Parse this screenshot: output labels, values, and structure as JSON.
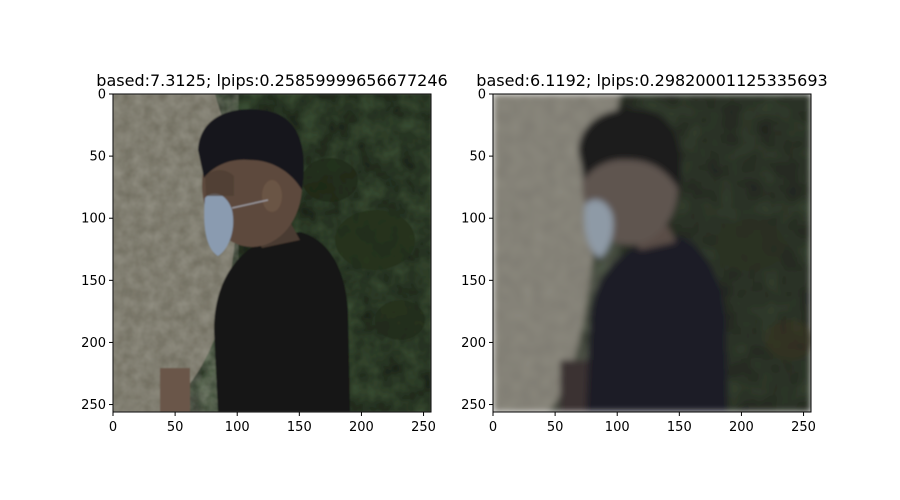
{
  "figure": {
    "background": "#ffffff"
  },
  "chart_data": [
    {
      "type": "image",
      "title": "based:7.3125; lpips:0.25859999656677246",
      "xlim": [
        0,
        256
      ],
      "ylim": [
        256,
        0
      ],
      "xticks": [
        0,
        50,
        100,
        150,
        200,
        250
      ],
      "yticks": [
        0,
        50,
        100,
        150,
        200,
        250
      ],
      "xtick_labels": [
        "0",
        "50",
        "100",
        "150",
        "200",
        "250"
      ],
      "ytick_labels": [
        "0",
        "50",
        "100",
        "150",
        "200",
        "250"
      ],
      "xlabel": "",
      "ylabel": "",
      "grid": false,
      "image_content": "photo of a person in a black shirt wearing a face mask, stone wall on the left, dark foliage on the right (sharp)",
      "colors": {
        "wall": "#6f6b5d",
        "foliage": "#1e2618",
        "shirt": "#141414",
        "hair": "#1a1a1c",
        "skin": "#6e5a48",
        "mask": "#8d9fb0"
      }
    },
    {
      "type": "image",
      "title": "based:6.1192; lpips:0.29820001125335693",
      "xlim": [
        0,
        256
      ],
      "ylim": [
        256,
        0
      ],
      "xticks": [
        0,
        50,
        100,
        150,
        200,
        250
      ],
      "yticks": [
        0,
        50,
        100,
        150,
        200,
        250
      ],
      "xtick_labels": [
        "0",
        "50",
        "100",
        "150",
        "200",
        "250"
      ],
      "ytick_labels": [
        "0",
        "50",
        "100",
        "150",
        "200",
        "250"
      ],
      "xlabel": "",
      "ylabel": "",
      "grid": false,
      "image_content": "same scene reconstructed, blurrier and desaturated",
      "colors": {
        "wall": "#7a776e",
        "foliage": "#262820",
        "shirt": "#1d1a24",
        "hair": "#1c1b1f",
        "skin": "#6f6460",
        "mask": "#8e9aa4"
      }
    }
  ]
}
